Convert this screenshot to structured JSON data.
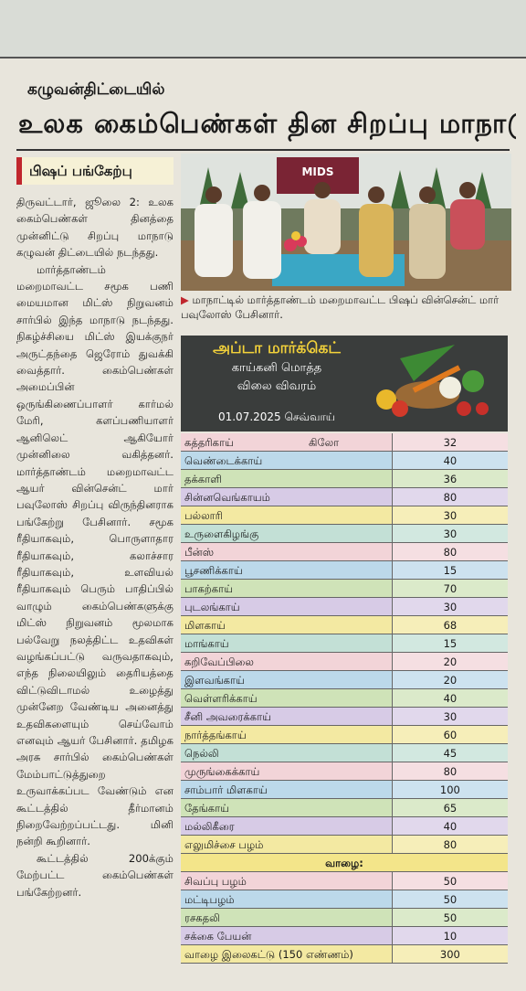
{
  "header": {
    "kicker": "கழுவன்திட்டையில்",
    "title": "உலக கைம்பெண்கள் தின சிறப்பு மாநாடு"
  },
  "article": {
    "subhead": "பிஷப் பங்கேற்பு",
    "paragraphs": [
      "திருவட்டார், ஜூலை 2: உலக கைம்பெண்கள் தினத்தை முன்னிட்டு சிறப்பு மாநாடு கழுவன் திட்டையில் நடந்தது.",
      "மார்த்தாண்டம் மறைமாவட்ட சமூக பணி மையமான மிட்ஸ் நிறுவனம் சார்பில் இந்த மாநாடு நடந்தது. நிகழ்ச்சியை மிட்ஸ் இயக்குநர் அருட்தந்தை ஜெரோம் துவக்கி வைத்தார். கைம்பெண்கள் அமைப்பின் ஒருங்கிணைப்பாளர் கார்மல் மேரி, களப்பணியாளர் ஆனிலெட் ஆகியோர் முன்னிலை வகித்தனர். மார்த்தாண்டம் மறைமாவட்ட ஆயர் வின்சென்ட் மார் பவுலோஸ் சிறப்பு விருந்தினராக பங்கேற்று பேசினார். சமூக ரீதியாகவும், பொருளாதார ரீதியாகவும், கலாச்சார ரீதியாகவும், உளவியல் ரீதியாகவும் பெரும் பாதிப்பில் வாழும் கைம்பெண்களுக்கு மிட்ஸ் நிறுவனம் மூலமாக பல்வேறு நலத்திட்ட உதவிகள் வழங்கப்பட்டு வருவதாகவும், எந்த நிலையிலும் தைரியத்தை விட்டுவிடாமல் உழைத்து முன்னேற வேண்டிய அனைத்து உதவிகளையும் செய்வோம் எனவும் ஆயர் பேசினார். தமிழக அரசு சார்பில் கைம்பெண்கள் மேம்பாட்டுத்துறை உருவாக்கப்பட வேண்டும் என கூட்டத்தில் தீர்மானம் நிறைவேற்றப்பட்டது. மினி நன்றி கூறினார்.",
      "கூட்டத்தில் 200க்கும் மேற்பட்ட கைம்பெண்கள் பங்கேற்றனர்."
    ],
    "photo_banner": "MIDS",
    "caption": "மாநாட்டில் மார்த்தாண்டம் மறைமாவட்ட பிஷப் வின்சென்ட் மார் பவுலோஸ் பேசினார்."
  },
  "market": {
    "title": "அப்டா மார்க்கெட்",
    "subtitle": [
      "காய்கனி மொத்த",
      "விலை விவரம்"
    ],
    "date": "01.07.2025 செவ்வாய்",
    "rows": [
      {
        "name": "கத்தரிகாய்",
        "unit": "கிலோ",
        "price": 32
      },
      {
        "name": "வெண்டைக்காய்",
        "price": 40
      },
      {
        "name": "தக்காளி",
        "price": 36
      },
      {
        "name": "சின்னவெங்காயம்",
        "price": 80
      },
      {
        "name": "பல்லாரி",
        "price": 30
      },
      {
        "name": "உருளைகிழங்கு",
        "price": 30
      },
      {
        "name": "பீன்ஸ்",
        "price": 80
      },
      {
        "name": "பூசணிக்காய்",
        "price": 15
      },
      {
        "name": "பாகற்காய்",
        "price": 70
      },
      {
        "name": "புடலங்காய்",
        "price": 30
      },
      {
        "name": "மிளகாய்",
        "price": 68
      },
      {
        "name": "மாங்காய்",
        "price": 15
      },
      {
        "name": "கறிவேப்பிலை",
        "price": 20
      },
      {
        "name": "இளவங்காய்",
        "price": 20
      },
      {
        "name": "வெள்ளரிக்காய்",
        "price": 40
      },
      {
        "name": "சீனி அவரைக்காய்",
        "price": 30
      },
      {
        "name": "நார்த்தங்காய்",
        "price": 60
      },
      {
        "name": "நெல்லி",
        "price": 45
      },
      {
        "name": "முருங்கைக்காய்",
        "price": 80
      },
      {
        "name": "சாம்பார் மிளகாய்",
        "price": 100
      },
      {
        "name": "தேங்காய்",
        "price": 65
      },
      {
        "name": "மல்லிகீரை",
        "price": 40
      },
      {
        "name": "எலுமிச்சை பழம்",
        "price": 80
      },
      {
        "section": "வாழை:"
      },
      {
        "name": "சிவப்பு பழம்",
        "price": 50
      },
      {
        "name": "மட்டிபழம்",
        "price": 50
      },
      {
        "name": "ரசகதலி",
        "price": 50
      },
      {
        "name": "சக்கை பேயன்",
        "price": 10
      },
      {
        "name": "வாழை இலைகட்டு (150 எண்ணம்)",
        "price": 300
      }
    ]
  }
}
